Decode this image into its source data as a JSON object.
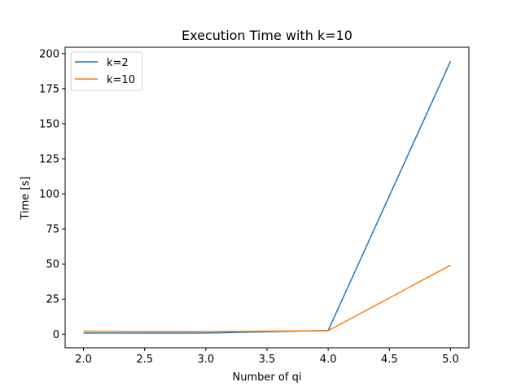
{
  "chart_data": {
    "type": "line",
    "title": "Execution Time with k=10",
    "xlabel": "Number of qi",
    "ylabel": "Time [s]",
    "x": [
      2,
      3,
      4,
      5
    ],
    "xlim": [
      1.85,
      5.15
    ],
    "ylim": [
      -9.7,
      204.5
    ],
    "xticks": [
      2.0,
      2.5,
      3.0,
      3.5,
      4.0,
      4.5,
      5.0
    ],
    "xtick_labels": [
      "2.0",
      "2.5",
      "3.0",
      "3.5",
      "4.0",
      "4.5",
      "5.0"
    ],
    "yticks": [
      0,
      25,
      50,
      75,
      100,
      125,
      150,
      175,
      200
    ],
    "ytick_labels": [
      "0",
      "25",
      "50",
      "75",
      "100",
      "125",
      "150",
      "175",
      "200"
    ],
    "series": [
      {
        "name": "k=2",
        "values": [
          0.8,
          0.8,
          2.7,
          194.5
        ],
        "color": "#1f77b4"
      },
      {
        "name": "k=10",
        "values": [
          2.2,
          1.9,
          2.5,
          49.2
        ],
        "color": "#ff7f0e"
      }
    ],
    "grid": false,
    "legend_position": "upper-left"
  }
}
